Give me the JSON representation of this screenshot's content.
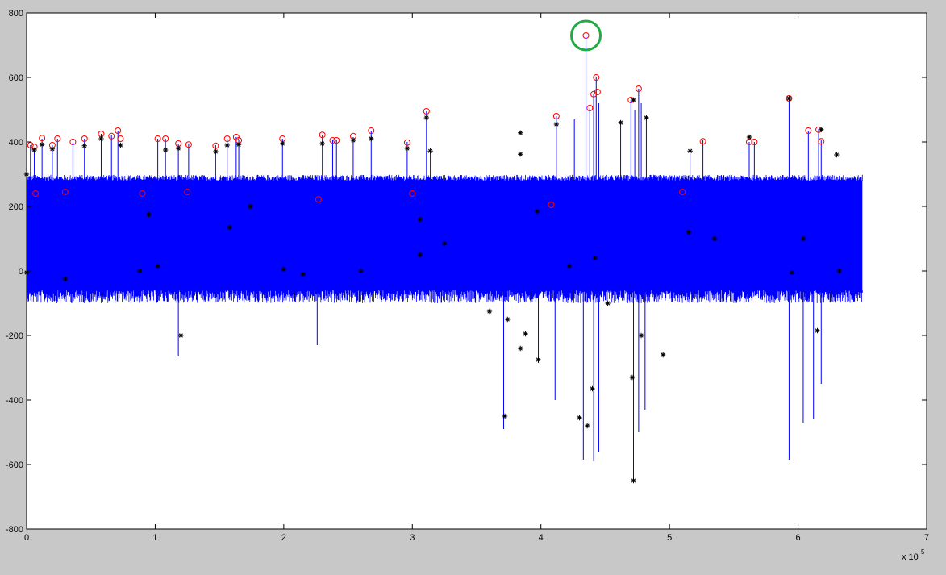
{
  "chart_data": {
    "type": "line",
    "title": "",
    "xlabel": "",
    "ylabel": "",
    "x_exponent_label": "x 10",
    "x_exponent_power": "5",
    "xlim": [
      0,
      7
    ],
    "ylim": [
      -800,
      800
    ],
    "x_ticks": [
      0,
      1,
      2,
      3,
      4,
      5,
      6,
      7
    ],
    "y_ticks": [
      -800,
      -600,
      -400,
      -200,
      0,
      200,
      400,
      600,
      800
    ],
    "x_scale_note": "x values in units of 10^5 samples",
    "grid": false,
    "legend": "none",
    "colors": {
      "figure_background": "#c8c8c8",
      "axes_background": "#ffffff",
      "signal": "#0000ff",
      "circle_markers": "#ff0000",
      "star_markers": "#000000",
      "highlight_circle": "#22aa44"
    },
    "series": [
      {
        "marker": "line",
        "color": "#0000ff",
        "baseline_band": {
          "x_range": [
            0,
            6.5
          ],
          "y_low": -60,
          "y_high": 280
        },
        "spikes": [
          {
            "x": 0.03,
            "y": 390
          },
          {
            "x": 0.06,
            "y": 380
          },
          {
            "x": 0.12,
            "y": 410
          },
          {
            "x": 0.2,
            "y": 390
          },
          {
            "x": 0.24,
            "y": 410
          },
          {
            "x": 0.36,
            "y": 400
          },
          {
            "x": 0.45,
            "y": 410
          },
          {
            "x": 0.58,
            "y": 425
          },
          {
            "x": 0.66,
            "y": 420
          },
          {
            "x": 0.71,
            "y": 435
          },
          {
            "x": 1.02,
            "y": 410
          },
          {
            "x": 1.08,
            "y": 410
          },
          {
            "x": 1.18,
            "y": 395
          },
          {
            "x": 1.26,
            "y": 395
          },
          {
            "x": 1.47,
            "y": 390
          },
          {
            "x": 1.56,
            "y": 410
          },
          {
            "x": 1.63,
            "y": 415
          },
          {
            "x": 1.65,
            "y": 405
          },
          {
            "x": 1.99,
            "y": 410
          },
          {
            "x": 2.3,
            "y": 420
          },
          {
            "x": 2.38,
            "y": 405
          },
          {
            "x": 2.41,
            "y": 405
          },
          {
            "x": 2.54,
            "y": 415
          },
          {
            "x": 2.68,
            "y": 435
          },
          {
            "x": 2.96,
            "y": 400
          },
          {
            "x": 3.11,
            "y": 495
          },
          {
            "x": 3.14,
            "y": 370
          },
          {
            "x": 4.12,
            "y": 480
          },
          {
            "x": 4.26,
            "y": 470
          },
          {
            "x": 4.35,
            "y": 730
          },
          {
            "x": 4.38,
            "y": 505
          },
          {
            "x": 4.41,
            "y": 550
          },
          {
            "x": 4.43,
            "y": 600
          },
          {
            "x": 4.45,
            "y": 520
          },
          {
            "x": 4.62,
            "y": 460
          },
          {
            "x": 4.7,
            "y": 530
          },
          {
            "x": 4.73,
            "y": 500
          },
          {
            "x": 4.76,
            "y": 565
          },
          {
            "x": 4.78,
            "y": 520
          },
          {
            "x": 4.82,
            "y": 480
          },
          {
            "x": 5.16,
            "y": 370
          },
          {
            "x": 5.26,
            "y": 405
          },
          {
            "x": 5.62,
            "y": 400
          },
          {
            "x": 5.66,
            "y": 400
          },
          {
            "x": 5.93,
            "y": 535
          },
          {
            "x": 6.08,
            "y": 435
          },
          {
            "x": 6.16,
            "y": 440
          },
          {
            "x": 6.18,
            "y": 405
          },
          {
            "x": -0.01,
            "y": -60
          },
          {
            "x": 1.18,
            "y": -265
          },
          {
            "x": 2.26,
            "y": -230
          },
          {
            "x": 3.71,
            "y": -490
          },
          {
            "x": 3.98,
            "y": -285
          },
          {
            "x": 4.11,
            "y": -400
          },
          {
            "x": 4.33,
            "y": -585
          },
          {
            "x": 4.41,
            "y": -590
          },
          {
            "x": 4.45,
            "y": -560
          },
          {
            "x": 4.72,
            "y": -650
          },
          {
            "x": 4.76,
            "y": -500
          },
          {
            "x": 4.81,
            "y": -430
          },
          {
            "x": 5.93,
            "y": -585
          },
          {
            "x": 6.04,
            "y": -470
          },
          {
            "x": 6.12,
            "y": -460
          },
          {
            "x": 6.18,
            "y": -350
          }
        ]
      },
      {
        "marker": "circle",
        "color": "#ff0000",
        "note": "red circle peak markers (dense cluster near 280 along whole band, plus on spike tips)",
        "points": [
          {
            "x": 0.03,
            "y": 390
          },
          {
            "x": 0.06,
            "y": 385
          },
          {
            "x": 0.12,
            "y": 412
          },
          {
            "x": 0.2,
            "y": 390
          },
          {
            "x": 0.24,
            "y": 410
          },
          {
            "x": 0.36,
            "y": 400
          },
          {
            "x": 0.45,
            "y": 410
          },
          {
            "x": 0.58,
            "y": 425
          },
          {
            "x": 0.66,
            "y": 418
          },
          {
            "x": 0.71,
            "y": 435
          },
          {
            "x": 0.73,
            "y": 410
          },
          {
            "x": 1.02,
            "y": 410
          },
          {
            "x": 1.08,
            "y": 410
          },
          {
            "x": 1.18,
            "y": 395
          },
          {
            "x": 1.26,
            "y": 392
          },
          {
            "x": 1.47,
            "y": 388
          },
          {
            "x": 1.56,
            "y": 410
          },
          {
            "x": 1.63,
            "y": 415
          },
          {
            "x": 1.65,
            "y": 405
          },
          {
            "x": 1.99,
            "y": 410
          },
          {
            "x": 2.3,
            "y": 422
          },
          {
            "x": 2.38,
            "y": 405
          },
          {
            "x": 2.41,
            "y": 405
          },
          {
            "x": 2.54,
            "y": 418
          },
          {
            "x": 2.68,
            "y": 435
          },
          {
            "x": 2.96,
            "y": 398
          },
          {
            "x": 3.11,
            "y": 495
          },
          {
            "x": 4.12,
            "y": 480
          },
          {
            "x": 4.35,
            "y": 730
          },
          {
            "x": 4.38,
            "y": 505
          },
          {
            "x": 4.41,
            "y": 548
          },
          {
            "x": 4.43,
            "y": 600
          },
          {
            "x": 4.44,
            "y": 555
          },
          {
            "x": 4.7,
            "y": 530
          },
          {
            "x": 4.76,
            "y": 565
          },
          {
            "x": 5.26,
            "y": 402
          },
          {
            "x": 5.62,
            "y": 400
          },
          {
            "x": 5.66,
            "y": 400
          },
          {
            "x": 5.93,
            "y": 535
          },
          {
            "x": 6.08,
            "y": 435
          },
          {
            "x": 6.16,
            "y": 438
          },
          {
            "x": 6.18,
            "y": 402
          },
          {
            "x": 0.07,
            "y": 240
          },
          {
            "x": 0.3,
            "y": 245
          },
          {
            "x": 0.9,
            "y": 240
          },
          {
            "x": 1.25,
            "y": 245
          },
          {
            "x": 2.27,
            "y": 222
          },
          {
            "x": 3.0,
            "y": 240
          },
          {
            "x": 4.08,
            "y": 205
          },
          {
            "x": 5.1,
            "y": 245
          }
        ]
      },
      {
        "marker": "star",
        "color": "#000000",
        "note": "black asterisk markers (dense near 300 along band, on spike tips, and scattered below)",
        "points": [
          {
            "x": 0.0,
            "y": 300
          },
          {
            "x": 0.06,
            "y": 375
          },
          {
            "x": 0.12,
            "y": 392
          },
          {
            "x": 0.2,
            "y": 378
          },
          {
            "x": 0.45,
            "y": 388
          },
          {
            "x": 0.58,
            "y": 410
          },
          {
            "x": 0.73,
            "y": 390
          },
          {
            "x": 1.08,
            "y": 375
          },
          {
            "x": 1.18,
            "y": 380
          },
          {
            "x": 1.47,
            "y": 370
          },
          {
            "x": 1.56,
            "y": 390
          },
          {
            "x": 1.65,
            "y": 392
          },
          {
            "x": 1.99,
            "y": 395
          },
          {
            "x": 2.3,
            "y": 395
          },
          {
            "x": 2.54,
            "y": 405
          },
          {
            "x": 2.68,
            "y": 410
          },
          {
            "x": 2.96,
            "y": 380
          },
          {
            "x": 3.11,
            "y": 475
          },
          {
            "x": 3.14,
            "y": 372
          },
          {
            "x": 3.84,
            "y": 428
          },
          {
            "x": 3.84,
            "y": 362
          },
          {
            "x": 4.12,
            "y": 455
          },
          {
            "x": 4.62,
            "y": 460
          },
          {
            "x": 4.72,
            "y": 530
          },
          {
            "x": 4.82,
            "y": 475
          },
          {
            "x": 5.16,
            "y": 372
          },
          {
            "x": 5.62,
            "y": 415
          },
          {
            "x": 5.93,
            "y": 535
          },
          {
            "x": 6.18,
            "y": 438
          },
          {
            "x": 6.3,
            "y": 360
          },
          {
            "x": 0.0,
            "y": -5
          },
          {
            "x": 0.3,
            "y": -25
          },
          {
            "x": 0.88,
            "y": 0
          },
          {
            "x": 0.95,
            "y": 175
          },
          {
            "x": 1.02,
            "y": 15
          },
          {
            "x": 1.2,
            "y": -200
          },
          {
            "x": 1.58,
            "y": 135
          },
          {
            "x": 1.74,
            "y": 200
          },
          {
            "x": 2.0,
            "y": 5
          },
          {
            "x": 2.15,
            "y": -10
          },
          {
            "x": 2.6,
            "y": 0
          },
          {
            "x": 3.06,
            "y": 160
          },
          {
            "x": 3.06,
            "y": 50
          },
          {
            "x": 3.25,
            "y": 85
          },
          {
            "x": 3.6,
            "y": -125
          },
          {
            "x": 3.72,
            "y": -450
          },
          {
            "x": 3.74,
            "y": -150
          },
          {
            "x": 3.84,
            "y": -240
          },
          {
            "x": 3.88,
            "y": -195
          },
          {
            "x": 3.98,
            "y": -275
          },
          {
            "x": 3.97,
            "y": 185
          },
          {
            "x": 4.22,
            "y": 15
          },
          {
            "x": 4.3,
            "y": -455
          },
          {
            "x": 4.36,
            "y": -480
          },
          {
            "x": 4.4,
            "y": -365
          },
          {
            "x": 4.42,
            "y": 40
          },
          {
            "x": 4.52,
            "y": -100
          },
          {
            "x": 4.72,
            "y": -650
          },
          {
            "x": 4.71,
            "y": -330
          },
          {
            "x": 4.78,
            "y": -200
          },
          {
            "x": 4.95,
            "y": -260
          },
          {
            "x": 5.15,
            "y": 120
          },
          {
            "x": 5.35,
            "y": 100
          },
          {
            "x": 5.95,
            "y": -5
          },
          {
            "x": 6.04,
            "y": 100
          },
          {
            "x": 6.15,
            "y": -185
          },
          {
            "x": 6.32,
            "y": 0
          }
        ]
      }
    ],
    "annotations": [
      {
        "type": "circle_highlight",
        "color": "#22aa44",
        "x": 4.35,
        "y": 730,
        "note": "green circle around the global maximum"
      }
    ]
  }
}
